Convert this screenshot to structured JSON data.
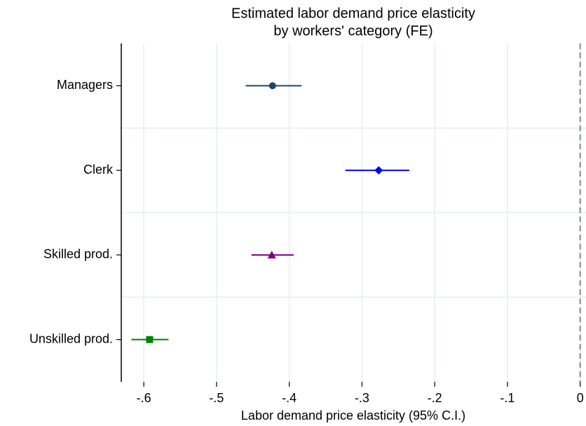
{
  "chart_data": {
    "type": "coefplot",
    "title": [
      "Estimated labor demand price elasticity",
      "by workers' category (FE)"
    ],
    "x_label": "Labor demand price elasticity (95% C.I.)",
    "categories": [
      "Managers",
      "Clerk",
      "Skilled prod.",
      "Unskilled prod."
    ],
    "values": [
      -0.423,
      -0.277,
      -0.424,
      -0.592
    ],
    "ci_low": [
      -0.46,
      -0.323,
      -0.452,
      -0.617
    ],
    "ci_high": [
      -0.383,
      -0.235,
      -0.394,
      -0.566
    ],
    "colors": [
      "#1a476f",
      "#0000ff",
      "#800080",
      "#008000"
    ],
    "markers": [
      "circle",
      "diamond",
      "triangle",
      "square"
    ],
    "xlim": [
      -0.631,
      0.008
    ],
    "xticks": [
      {
        "value": -0.6,
        "label": "-.6"
      },
      {
        "value": -0.5,
        "label": "-.5"
      },
      {
        "value": -0.4,
        "label": "-.4"
      },
      {
        "value": -0.3,
        "label": "-.3"
      },
      {
        "value": -0.2,
        "label": "-.2"
      },
      {
        "value": -0.1,
        "label": "-.1"
      },
      0
    ],
    "reference_line": 0,
    "grid": true
  }
}
